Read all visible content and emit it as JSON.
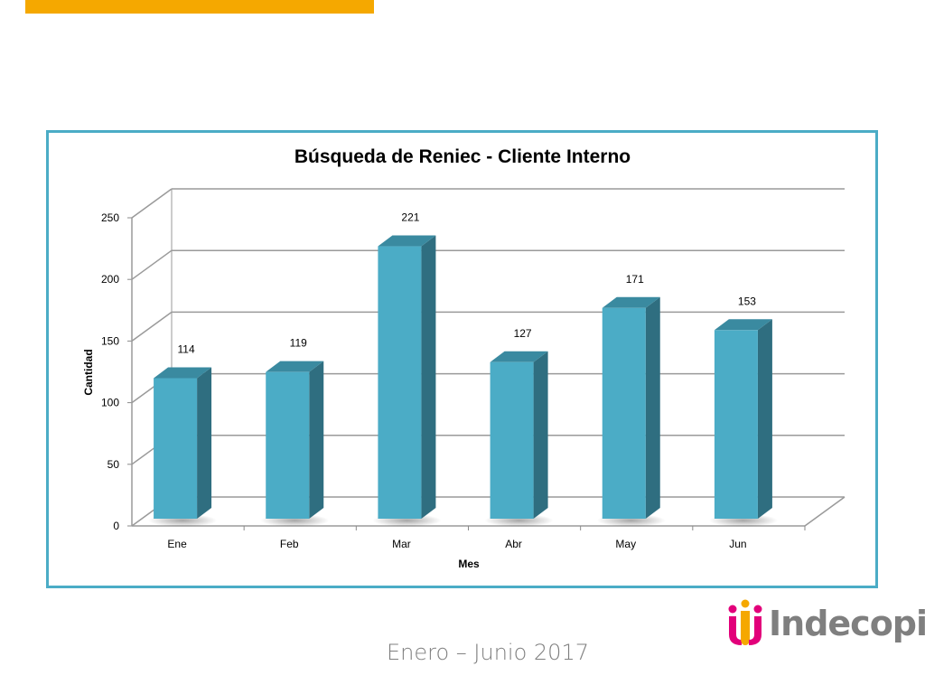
{
  "slide": {
    "footer": "Enero – Junio 2017",
    "logo_text": "Indecopi",
    "accent_color": "#f5a800",
    "frame_color": "#4bacc6"
  },
  "chart_data": {
    "type": "bar",
    "title": "Búsqueda de Reniec - Cliente Interno",
    "xlabel": "Mes",
    "ylabel": "Cantidad",
    "categories": [
      "Ene",
      "Feb",
      "Mar",
      "Abr",
      "May",
      "Jun"
    ],
    "values": [
      114,
      119,
      221,
      127,
      171,
      153
    ],
    "ylim": [
      0,
      250
    ],
    "yticks": [
      0,
      50,
      100,
      150,
      200,
      250
    ],
    "grid": true,
    "legend": "none",
    "bar_color": "#4bacc6",
    "style": "3d-column"
  }
}
